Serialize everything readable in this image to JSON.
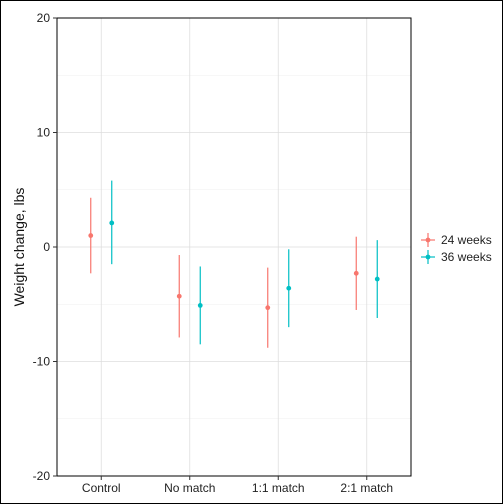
{
  "chart_data": {
    "type": "scatter",
    "subtype": "point-range",
    "title": "",
    "xlabel": "",
    "ylabel": "Weight change, lbs",
    "ylim": [
      -20,
      20
    ],
    "yticks": [
      -20,
      -10,
      0,
      10,
      20
    ],
    "categories": [
      "Control",
      "No match",
      "1:1 match",
      "2:1 match"
    ],
    "grid": true,
    "legend_position": "right",
    "series": [
      {
        "name": "24 weeks",
        "color": "#f8766d",
        "values": [
          1.0,
          -4.3,
          -5.3,
          -2.3
        ],
        "lower": [
          -2.3,
          -7.9,
          -8.8,
          -5.5
        ],
        "upper": [
          4.3,
          -0.7,
          -1.8,
          0.9
        ]
      },
      {
        "name": "36 weeks",
        "color": "#00bfc4",
        "values": [
          2.1,
          -5.1,
          -3.6,
          -2.8
        ],
        "lower": [
          -1.5,
          -8.5,
          -7.0,
          -6.2
        ],
        "upper": [
          5.8,
          -1.7,
          -0.2,
          0.6
        ]
      }
    ]
  }
}
